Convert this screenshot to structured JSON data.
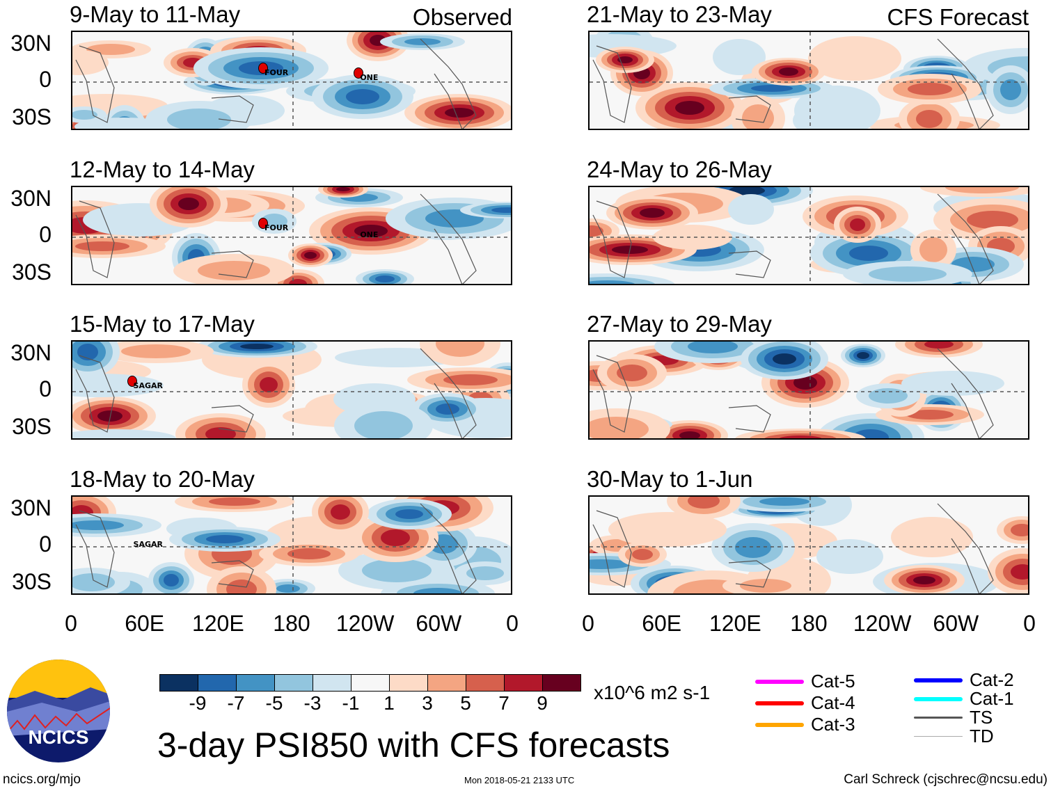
{
  "header": {
    "left_label": "Observed",
    "right_label": "CFS Forecast"
  },
  "panels": [
    {
      "title": "9-May to 11-May",
      "storms": [
        {
          "name": "FOUR",
          "lon": 155,
          "lat": 10
        },
        {
          "name": "ONE",
          "lon": 233,
          "lat": 6
        }
      ]
    },
    {
      "title": "12-May to 14-May",
      "storms": [
        {
          "name": "FOUR",
          "lon": 155,
          "lat": 10
        },
        {
          "name": "ONE",
          "lon": 233,
          "lat": 4,
          "marker": false
        }
      ]
    },
    {
      "title": "15-May to 17-May",
      "storms": [
        {
          "name": "SAGAR",
          "lon": 48,
          "lat": 7
        }
      ]
    },
    {
      "title": "18-May to 20-May",
      "storms": [
        {
          "name": "SAGAR",
          "lon": 48,
          "lat": 4,
          "marker": false
        }
      ]
    },
    {
      "title": "21-May to 23-May",
      "storms": []
    },
    {
      "title": "24-May to 26-May",
      "storms": []
    },
    {
      "title": "27-May to 29-May",
      "storms": []
    },
    {
      "title": "30-May to 1-Jun",
      "storms": []
    }
  ],
  "lat_labels": [
    "30N",
    "0",
    "30S"
  ],
  "lon_labels": [
    "0",
    "60E",
    "120E",
    "180",
    "120W",
    "60W",
    "0"
  ],
  "colorbar": {
    "colors": [
      "#0b3161",
      "#2267ad",
      "#4393c4",
      "#92c5de",
      "#d1e5f0",
      "#f7f7f7",
      "#fddbc7",
      "#f4a582",
      "#d6604d",
      "#b2182b",
      "#67001f"
    ],
    "labels": [
      "-9",
      "-7",
      "-5",
      "-3",
      "-1",
      "1",
      "3",
      "5",
      "7",
      "9"
    ],
    "units": "x10^6 m2 s-1"
  },
  "legend": [
    {
      "label": "Cat-5",
      "color": "#ff00ff"
    },
    {
      "label": "Cat-4",
      "color": "#ff0000"
    },
    {
      "label": "Cat-3",
      "color": "#ffa500"
    },
    {
      "label": "Cat-2",
      "color": "#0000ff"
    },
    {
      "label": "Cat-1",
      "color": "#00ffff"
    },
    {
      "label": "TS",
      "color": "#555555"
    },
    {
      "label": "TD",
      "color": "#aaaaaa"
    }
  ],
  "title": "3-day PSI850 with CFS forecasts",
  "logo_text": "NCICS",
  "footer": {
    "url": "ncics.org/mjo",
    "timestamp": "Mon 2018-05-21 2133 UTC",
    "author": "Carl Schreck (cjschrec@ncsu.edu)"
  }
}
